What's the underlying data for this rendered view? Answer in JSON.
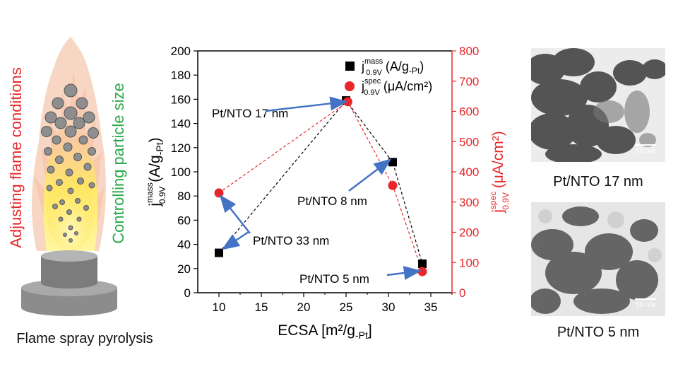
{
  "flame_panel": {
    "left_label": "Adjusting flame conditions",
    "right_label": "Controlling particle size",
    "caption": "Flame spray pyrolysis",
    "left_label_color": "#e8272a",
    "right_label_color": "#2aa84a"
  },
  "tem_panels": [
    {
      "caption": "Pt/NTO 17 nm",
      "scalebar": "50 nm"
    },
    {
      "caption": "Pt/NTO 5 nm",
      "scalebar": "50 nm"
    }
  ],
  "chart_data": {
    "type": "scatter",
    "xlabel": "ECSA [m²/g",
    "xlabel_sub": "-Pt",
    "xlabel_close": "]",
    "xlim": [
      7.5,
      37.5
    ],
    "x_ticks": [
      10,
      15,
      20,
      25,
      30,
      35
    ],
    "ylabel_left": "j",
    "ylabel_left_sup": "mass",
    "ylabel_left_sub": "0.9V",
    "ylabel_left_units": "(A/g",
    "ylabel_left_units_sub": "-Pt",
    "ylabel_left_units_close": ")",
    "ylim_left": [
      0,
      200
    ],
    "y_ticks_left": [
      0,
      20,
      40,
      60,
      80,
      100,
      120,
      140,
      160,
      180,
      200
    ],
    "ylabel_right": "j",
    "ylabel_right_sup": "spec",
    "ylabel_right_sub": "0.9V",
    "ylabel_right_units": "(μA/cm²)",
    "ylim_right": [
      0,
      800
    ],
    "y_ticks_right": [
      0,
      100,
      200,
      300,
      400,
      500,
      600,
      700,
      800
    ],
    "right_axis_color": "#e8272a",
    "series": [
      {
        "name": "j",
        "name_sup": "mass",
        "name_sub": "0.9V",
        "name_units": "(A/g",
        "name_units_sub": "-Pt",
        "name_units_close": ")",
        "axis": "left",
        "marker": "square",
        "color": "#000000",
        "x": [
          10,
          25,
          30.5,
          34
        ],
        "y": [
          33,
          159,
          108,
          24
        ]
      },
      {
        "name": "j",
        "name_sup": "spec",
        "name_sub": "0.9V",
        "name_units": "(μA/cm²)",
        "axis": "right",
        "marker": "circle",
        "color": "#e8272a",
        "x": [
          10,
          25.2,
          30.5,
          34
        ],
        "y": [
          330,
          632,
          355,
          70
        ]
      }
    ],
    "annotations": [
      {
        "text": "Pt/NTO 17 nm",
        "arrow_to": [
          25,
          158
        ]
      },
      {
        "text": "Pt/NTO 8 nm",
        "arrow_to": [
          30.2,
          110
        ]
      },
      {
        "text": "Pt/NTO 33 nm",
        "arrow_to": [
          10.2,
          80
        ]
      },
      {
        "text": "Pt/NTO 5 nm",
        "arrow_to": [
          33.7,
          18
        ]
      }
    ],
    "grid": false,
    "legend_position": "top-right"
  }
}
